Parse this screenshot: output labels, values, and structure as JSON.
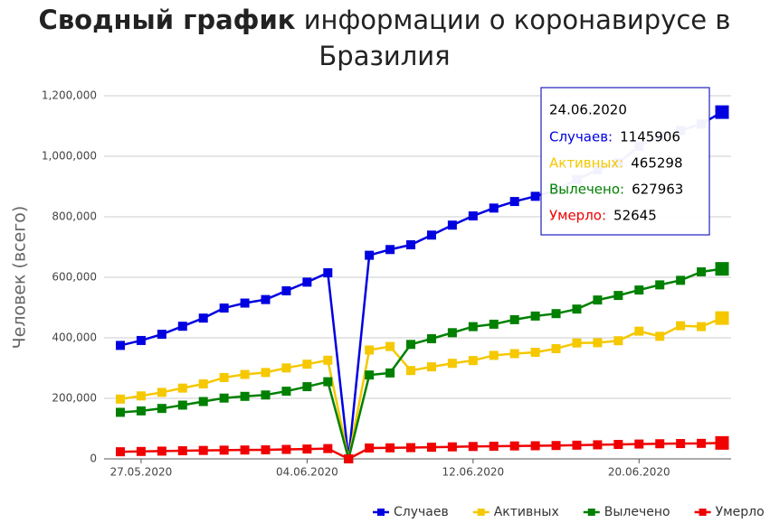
{
  "chart_data": {
    "type": "line",
    "title_bold": "Сводный график",
    "title": "информации о коронавирусе в Бразилия",
    "y_label": "Человек (всего)",
    "categories": [
      null,
      "27.05.2020",
      null,
      null,
      null,
      null,
      null,
      null,
      null,
      "04.06.2020",
      null,
      null,
      null,
      null,
      null,
      null,
      null,
      "12.06.2020",
      null,
      null,
      null,
      null,
      null,
      null,
      null,
      "20.06.2020",
      null,
      null,
      null,
      null
    ],
    "ylim": [
      0,
      1200000
    ],
    "yticks": [
      0,
      {
        "value": 200000,
        "label": "200,000"
      },
      {
        "value": 400000,
        "label": "400,000"
      },
      {
        "value": 600000,
        "label": "600,000"
      },
      {
        "value": 800000,
        "label": "800,000"
      },
      {
        "value": 1000000,
        "label": "1,000,000"
      },
      {
        "value": 1200000,
        "label": "1,200,000"
      }
    ],
    "grid": true,
    "legend": "bottom-right",
    "series": [
      {
        "name": "Случаев",
        "color": "#0000e0",
        "values": [
          374898,
          391222,
          411821,
          438238,
          465166,
          498440,
          514849,
          526447,
          555383,
          584016,
          614941,
          0,
          672846,
          691758,
          707412,
          739503,
          772416,
          802828,
          828810,
          850514,
          867624,
          888271,
          923189,
          955377,
          978142,
          1032913,
          1067579,
          1085038,
          1106470,
          1145906
        ]
      },
      {
        "name": "Активных",
        "color": "#f5c800",
        "values": [
          197592,
          208117,
          219576,
          233880,
          247812,
          268714,
          278980,
          285430,
          300546,
          312851,
          325957,
          0,
          359767,
          371351,
          292021,
          304097,
          315736,
          324909,
          341982,
          347794,
          352292,
          364153,
          382948,
          383867,
          390394,
          422000,
          405000,
          440000,
          437000,
          465298
        ]
      },
      {
        "name": "Вылечено",
        "color": "#008000",
        "values": [
          153833,
          158593,
          166647,
          177604,
          189476,
          200892,
          206555,
          211080,
          223638,
          238617,
          254963,
          0,
          277149,
          283952,
          378257,
          397000,
          417000,
          437000,
          445000,
          460000,
          472000,
          480000,
          495000,
          525000,
          540000,
          558000,
          575000,
          590000,
          618000,
          627963
        ]
      },
      {
        "name": "Умерло",
        "color": "#f00000",
        "values": [
          23473,
          24512,
          25598,
          26754,
          27878,
          28834,
          29314,
          29937,
          31199,
          32548,
          34021,
          0,
          35930,
          36455,
          37134,
          38406,
          39680,
          40919,
          41828,
          42720,
          43332,
          44118,
          45241,
          46510,
          47748,
          48954,
          49976,
          50617,
          51271,
          52645
        ]
      }
    ],
    "tooltip": {
      "date": "24.06.2020",
      "labels": [
        "Случаев:",
        "Активных:",
        "Вылечено:",
        "Умерло:"
      ]
    }
  }
}
